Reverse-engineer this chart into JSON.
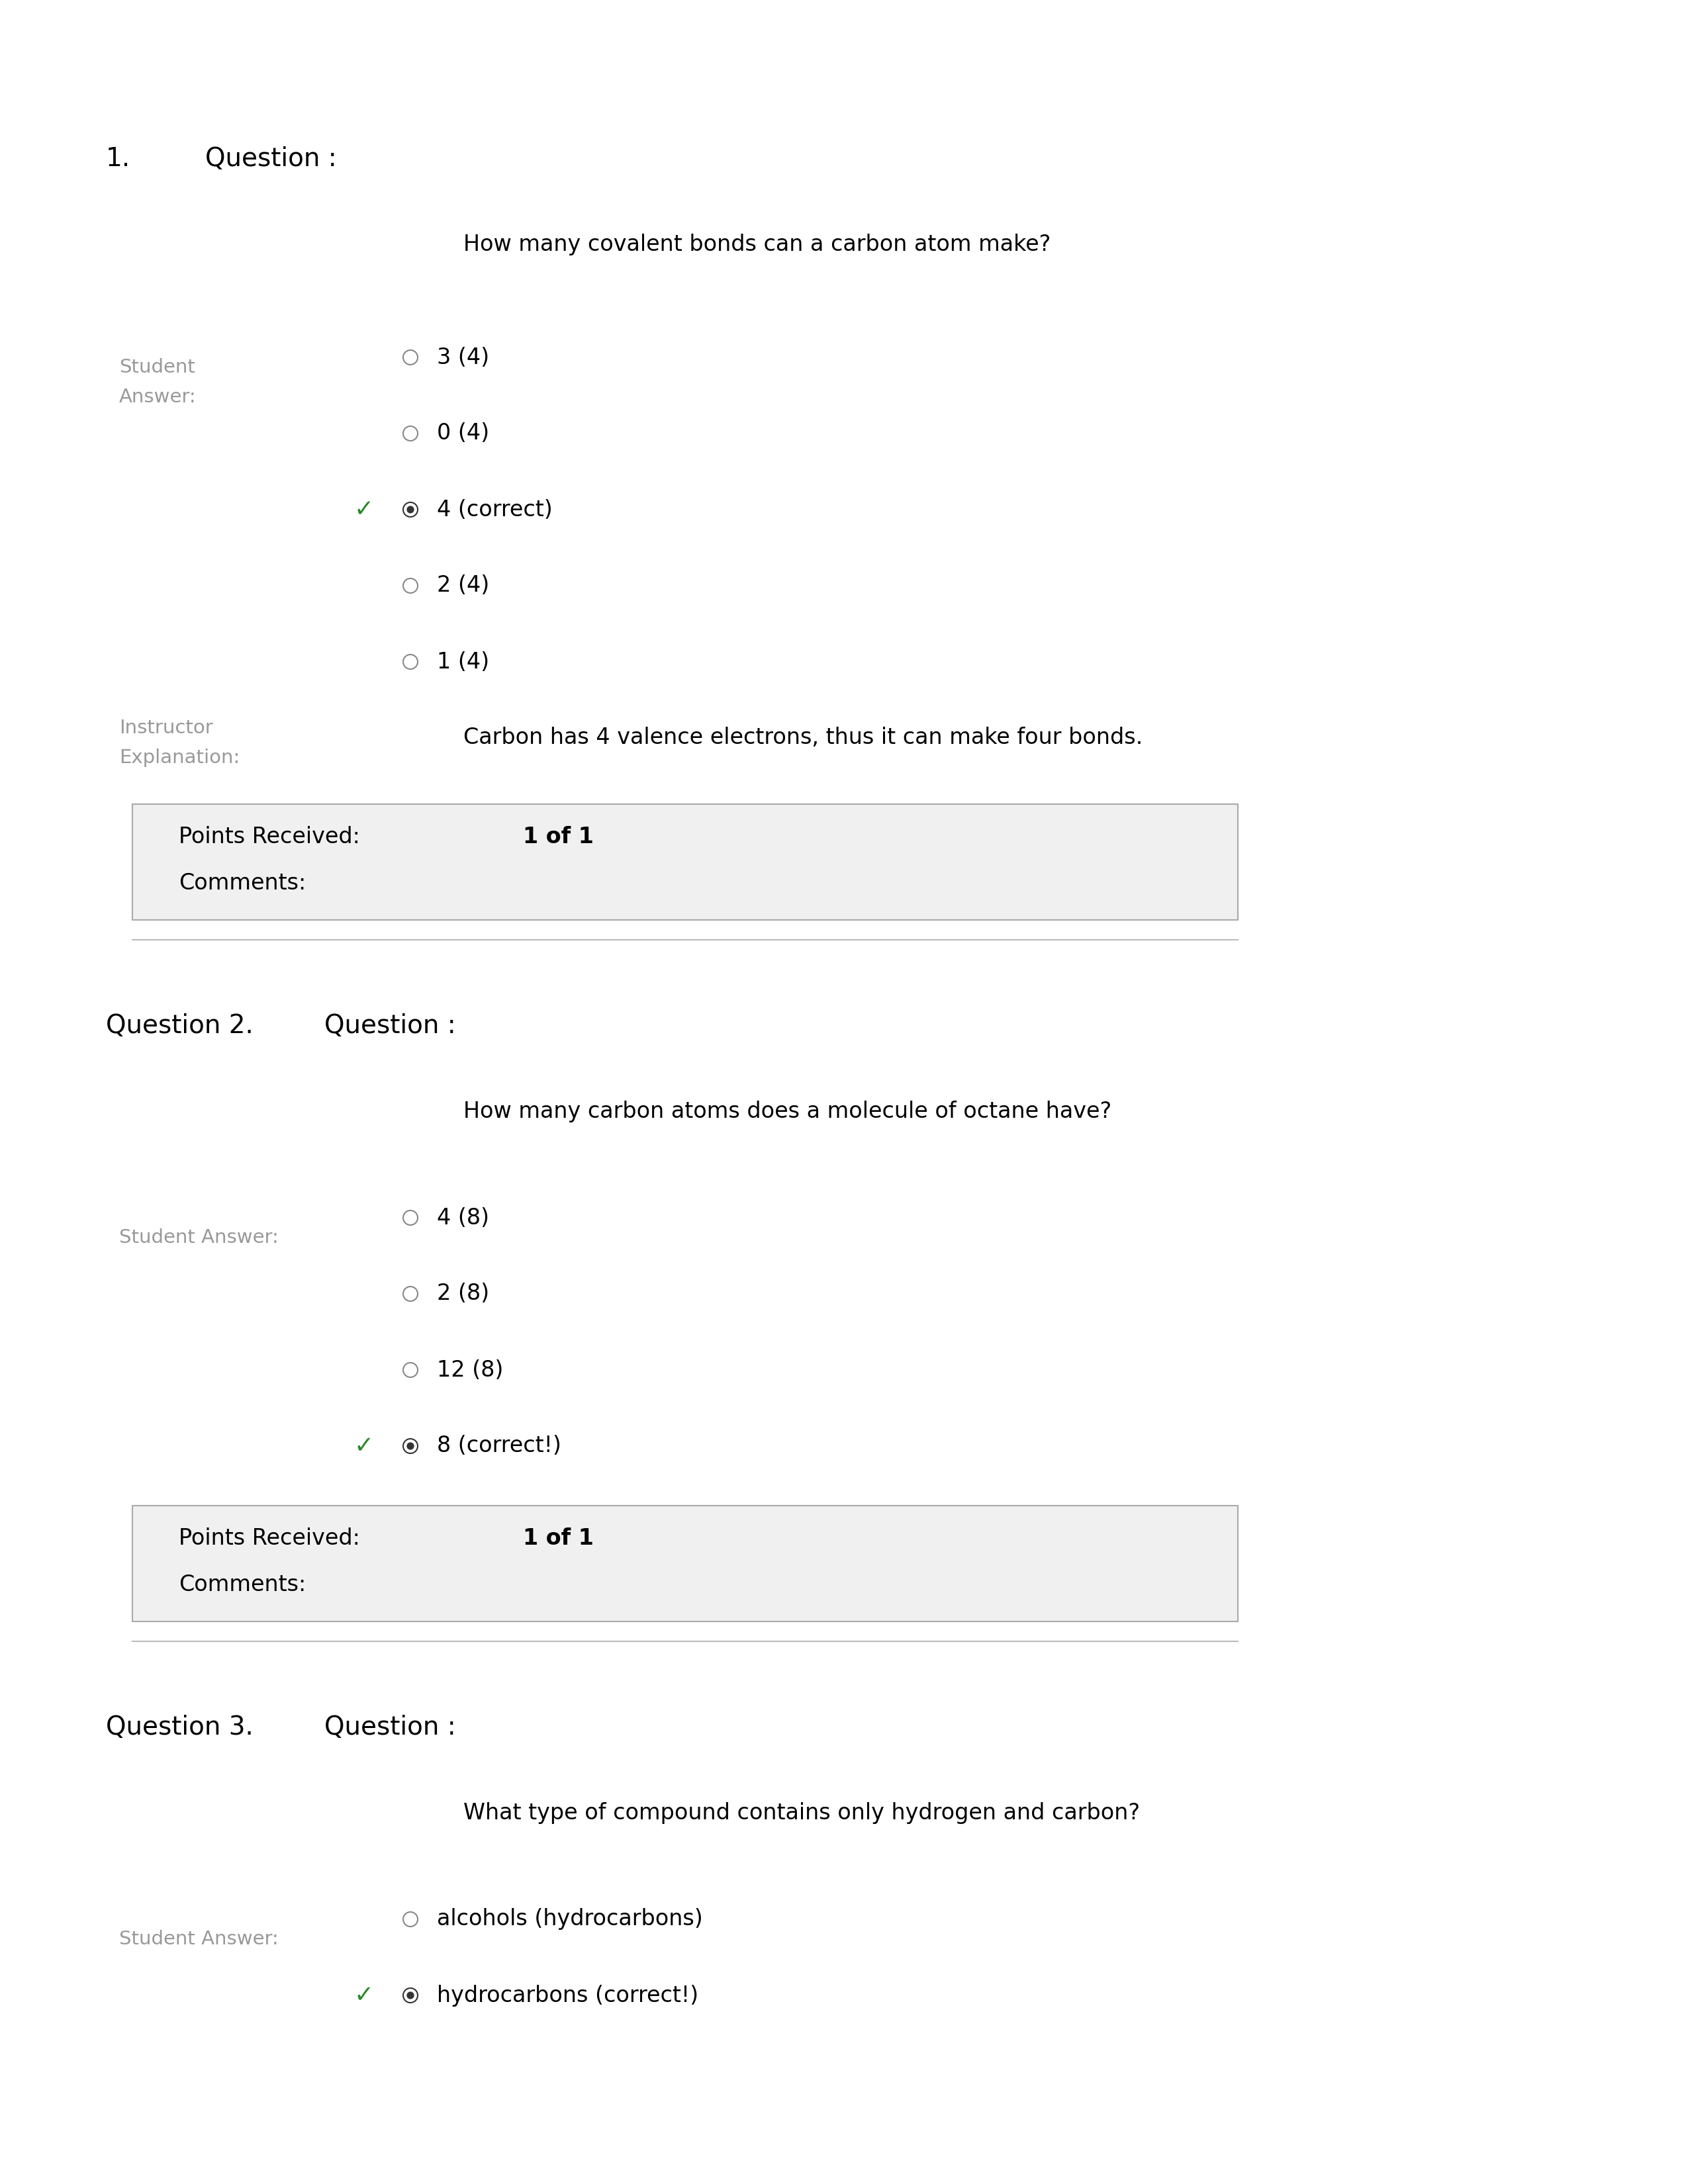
{
  "bg_color": "#ffffff",
  "text_color": "#000000",
  "gray_color": "#999999",
  "green_color": "#2a8a2a",
  "box_bg": "#f0f0f0",
  "box_border": "#aaaaaa",
  "line_color": "#bbbbbb",
  "q1_number": "1.",
  "q1_label": "Question :",
  "q1_question": "How many covalent bonds can a carbon atom make?",
  "q1_student_answer_label_line1": "Student",
  "q1_student_answer_label_line2": "Answer:",
  "q1_options": [
    "3 (4)",
    "0 (4)",
    "4 (correct)",
    "2 (4)",
    "1 (4)"
  ],
  "q1_correct_index": 2,
  "q1_instructor_label_line1": "Instructor",
  "q1_instructor_label_line2": "Explanation:",
  "q1_explanation": "Carbon has 4 valence electrons, thus it can make four bonds.",
  "q1_points": "1 of 1",
  "q2_number": "Question 2.",
  "q2_label": "Question :",
  "q2_question": "How many carbon atoms does a molecule of octane have?",
  "q2_student_answer_label": "Student Answer:",
  "q2_options": [
    "4 (8)",
    "2 (8)",
    "12 (8)",
    "8 (correct!)"
  ],
  "q2_correct_index": 3,
  "q2_points": "1 of 1",
  "q3_number": "Question 3.",
  "q3_label": "Question :",
  "q3_question": "What type of compound contains only hydrogen and carbon?",
  "q3_student_answer_label": "Student Answer:",
  "q3_options": [
    "alcohols (hydrocarbons)",
    "hydrocarbons (correct!)"
  ],
  "q3_correct_index": 1
}
